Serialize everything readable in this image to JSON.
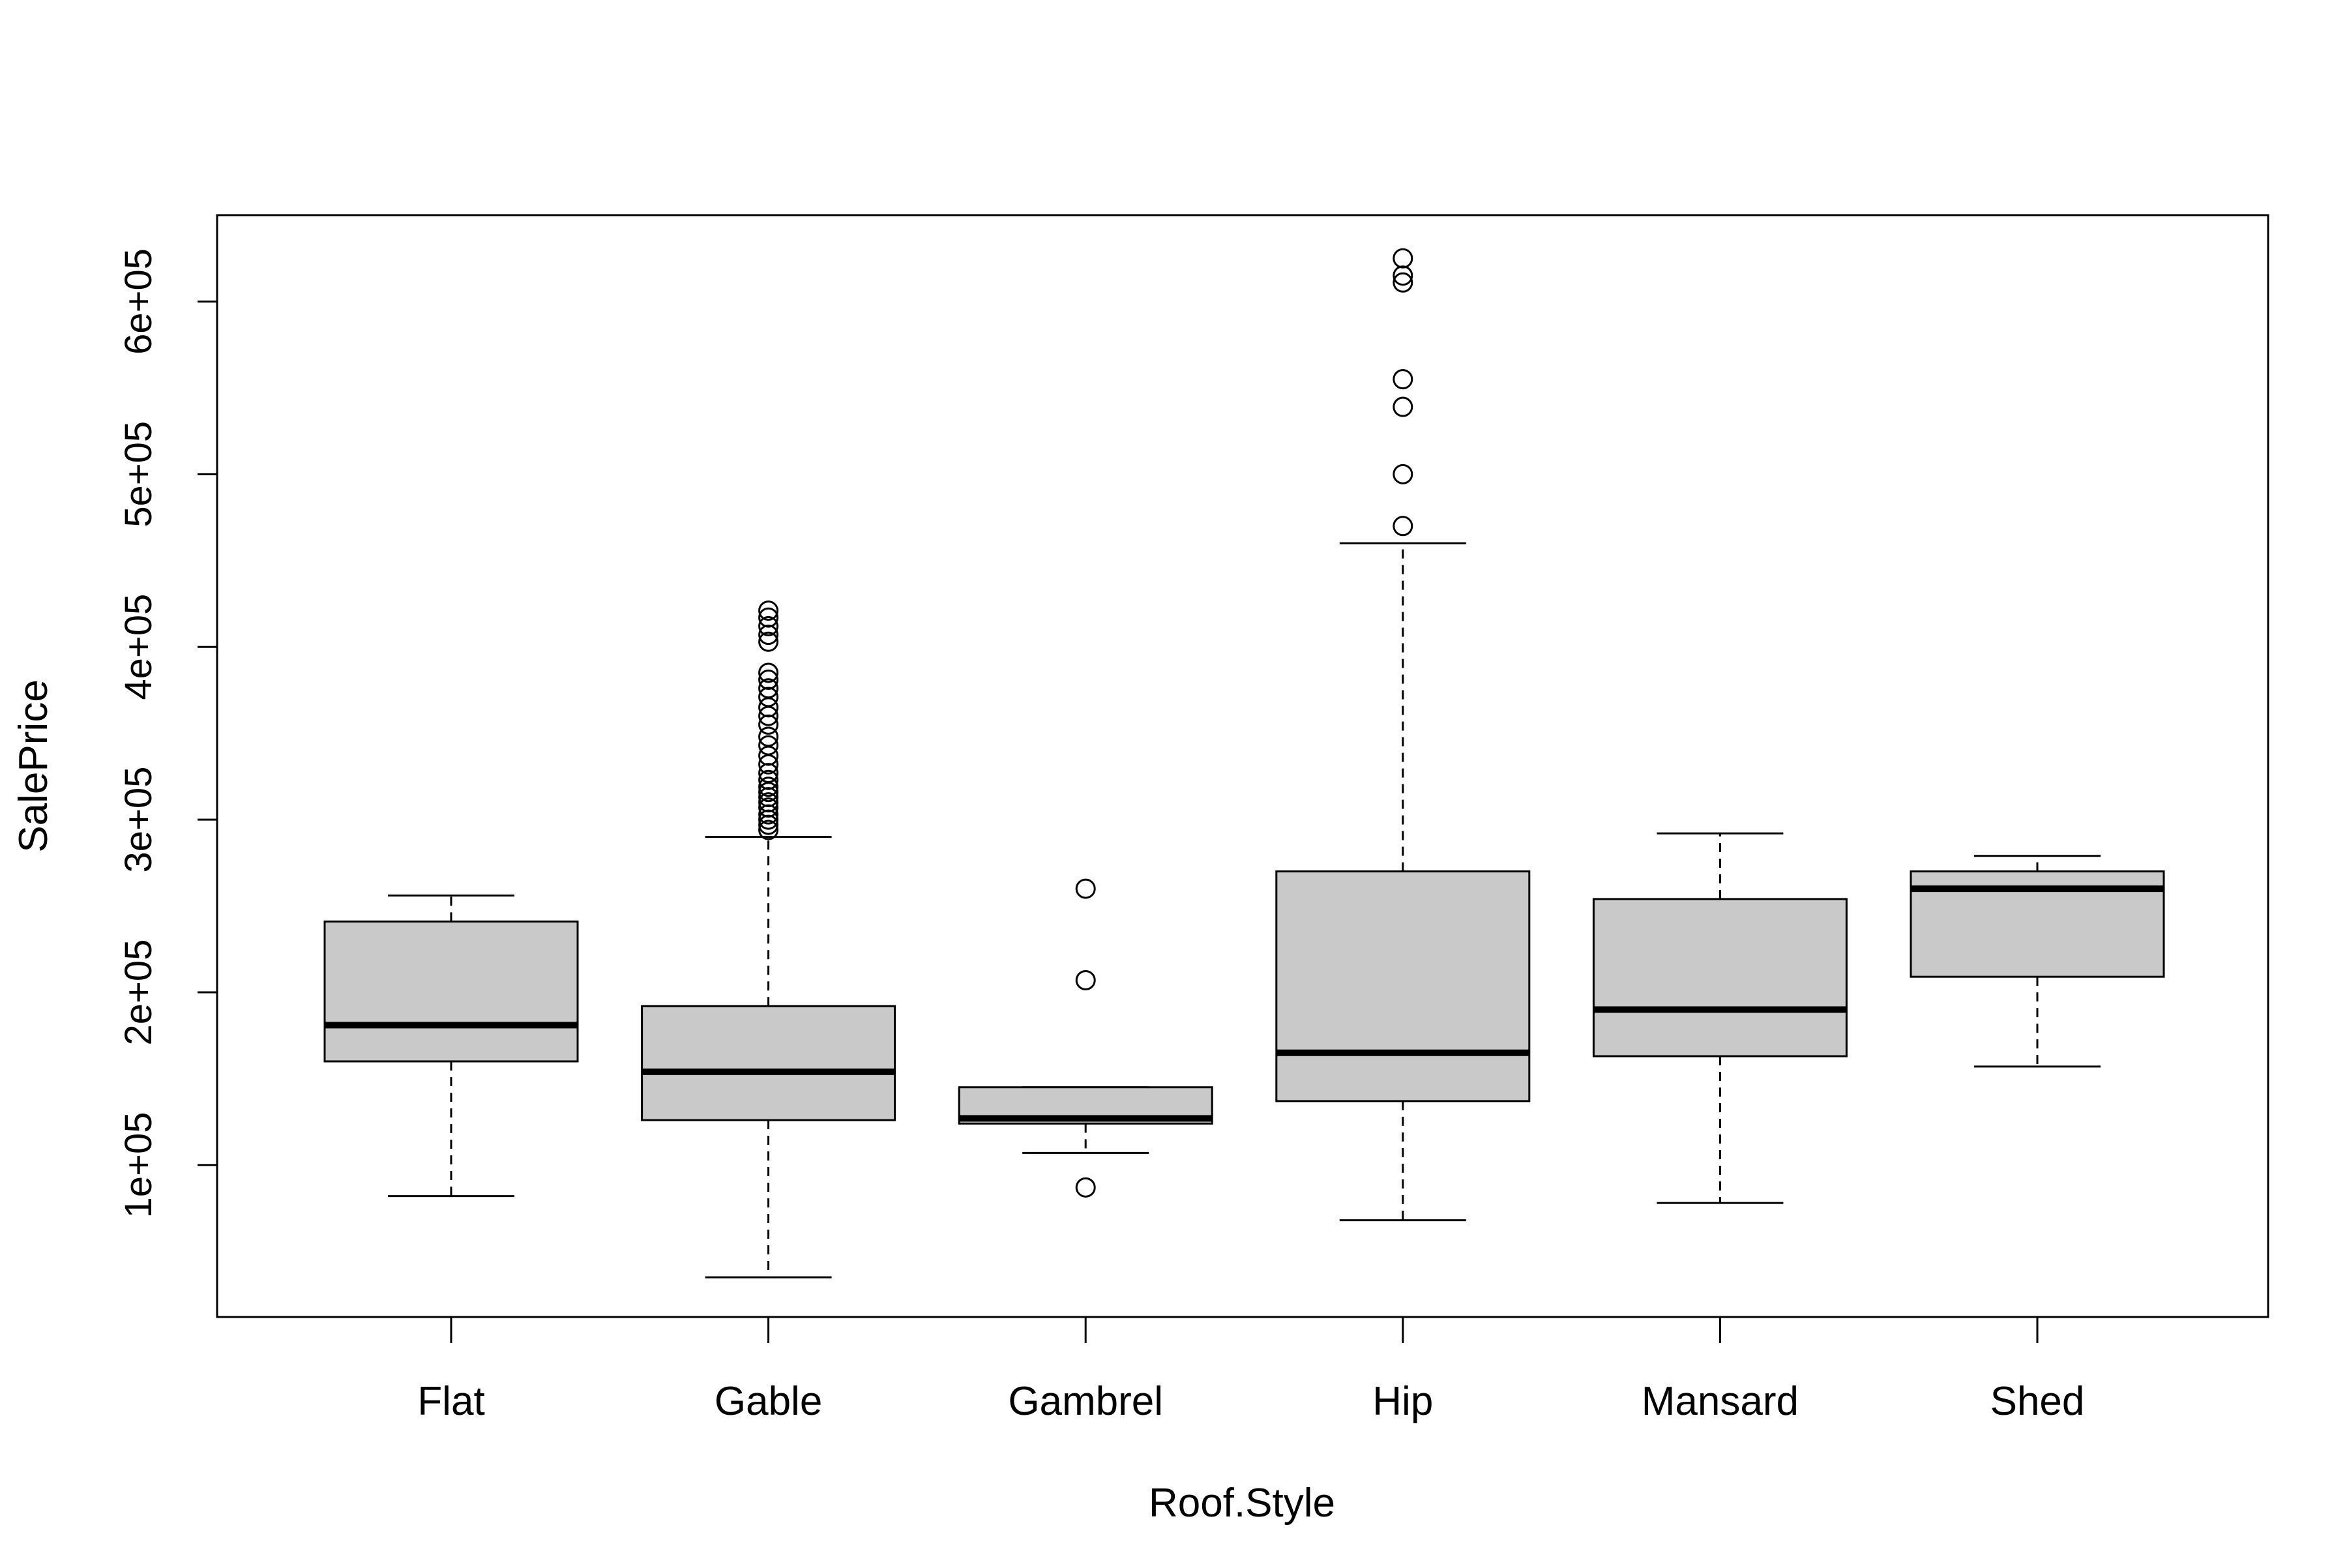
{
  "chart_data": {
    "type": "boxplot",
    "xlabel": "Roof.Style",
    "ylabel": "SalePrice",
    "categories": [
      "Flat",
      "Gable",
      "Gambrel",
      "Hip",
      "Mansard",
      "Shed"
    ],
    "yticks": [
      100000,
      200000,
      300000,
      400000,
      500000,
      600000
    ],
    "ytick_labels": [
      "1e+05",
      "2e+05",
      "3e+05",
      "4e+05",
      "5e+05",
      "6e+05"
    ],
    "ylim": [
      12000,
      650000
    ],
    "grid": false,
    "box_fill": "#c9c9c9",
    "boxes": [
      {
        "category": "Flat",
        "whisker_low": 82000,
        "q1": 160000,
        "median": 181000,
        "q3": 241000,
        "whisker_high": 256000,
        "outliers": []
      },
      {
        "category": "Gable",
        "whisker_low": 35000,
        "q1": 126000,
        "median": 154000,
        "q3": 192000,
        "whisker_high": 290000,
        "outliers": [
          294000,
          297000,
          300000,
          303000,
          307000,
          310000,
          313000,
          316000,
          319000,
          323000,
          327000,
          332000,
          337000,
          343000,
          348000,
          355000,
          360000,
          365000,
          371000,
          376000,
          381000,
          385000,
          403000,
          407000,
          412000,
          417000,
          421000
        ]
      },
      {
        "category": "Gambrel",
        "whisker_low": 107000,
        "q1": 124000,
        "median": 127000,
        "q3": 145000,
        "whisker_high": 145000,
        "outliers": [
          87000,
          207000,
          260000
        ]
      },
      {
        "category": "Hip",
        "whisker_low": 68000,
        "q1": 137000,
        "median": 165000,
        "q3": 270000,
        "whisker_high": 460000,
        "outliers": [
          470000,
          500000,
          539000,
          555000,
          611000,
          615000,
          625000
        ]
      },
      {
        "category": "Mansard",
        "whisker_low": 78000,
        "q1": 163000,
        "median": 190000,
        "q3": 254000,
        "whisker_high": 292000,
        "outliers": []
      },
      {
        "category": "Shed",
        "whisker_low": 157000,
        "q1": 209000,
        "median": 260000,
        "q3": 270000,
        "whisker_high": 279000,
        "outliers": []
      }
    ]
  }
}
